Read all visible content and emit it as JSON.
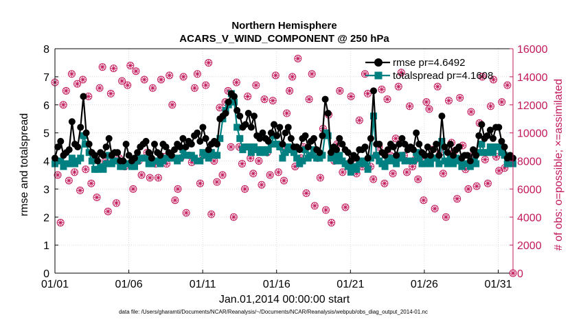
{
  "chart_data": {
    "type": "line",
    "title": [
      "Northern Hemisphere",
      "ACARS_V_WIND_COMPONENT @ 250 hPa"
    ],
    "xlabel": "Jan.01,2014 00:00:00 start",
    "ylabel": "rmse and totalspread",
    "ylabel_right": "# of obs: o=possible; ×=assimilated",
    "footnote": "data file: /Users/gharamti/Documents/NCAR/Reanalysis/~/Documents/NCAR/Reanalysis/webpub/obs_diag_output_2014-01.nc",
    "xlim": [
      1,
      32
    ],
    "ylim": [
      0,
      8
    ],
    "ylim_right": [
      0,
      16000
    ],
    "xticks": [
      {
        "value": 1,
        "label": "01/01"
      },
      {
        "value": 6,
        "label": "01/06"
      },
      {
        "value": 11,
        "label": "01/11"
      },
      {
        "value": 16,
        "label": "01/16"
      },
      {
        "value": 21,
        "label": "01/21"
      },
      {
        "value": 26,
        "label": "01/26"
      },
      {
        "value": 31,
        "label": "01/31"
      }
    ],
    "yticks": [
      "0",
      "1",
      "2",
      "3",
      "4",
      "5",
      "6",
      "7",
      "8"
    ],
    "yticks_right": [
      "0",
      "2000",
      "4000",
      "6000",
      "8000",
      "10000",
      "12000",
      "14000",
      "16000"
    ],
    "legend": {
      "placement": "top-right"
    },
    "series": [
      {
        "name": "rmse pr=4.6492",
        "axis": "left",
        "color": "#000000",
        "values": [
          4.1,
          4.5,
          4.7,
          4.2,
          4.3,
          4.4,
          5.4,
          4.6,
          4.5,
          5.2,
          6.3,
          5.0,
          4.6,
          4.3,
          4.2,
          4.0,
          4.3,
          4.2,
          4.5,
          4.8,
          4.2,
          4.3,
          4.3,
          4.0,
          4.0,
          4.6,
          4.2,
          4.0,
          4.1,
          4.3,
          4.5,
          4.6,
          4.7,
          4.3,
          4.1,
          4.6,
          4.3,
          4.2,
          4.6,
          4.5,
          4.3,
          4.2,
          4.4,
          4.6,
          4.5,
          4.8,
          4.5,
          4.7,
          4.6,
          4.9,
          5.0,
          4.7,
          5.2,
          4.8,
          4.4,
          4.6,
          4.7,
          4.6,
          5.5,
          5.6,
          5.7,
          6.1,
          6.4,
          6.3,
          5.8,
          5.6,
          5.2,
          5.3,
          5.7,
          5.2,
          5.6,
          4.9,
          4.8,
          5.0,
          4.8,
          4.7,
          5.0,
          5.3,
          4.9,
          5.2,
          4.6,
          5.0,
          5.2,
          4.8,
          4.5,
          4.5,
          4.4,
          4.8,
          4.9,
          4.5,
          4.7,
          4.8,
          4.4,
          4.3,
          4.9,
          6.2,
          5.7,
          4.3,
          4.5,
          4.4,
          4.8,
          4.6,
          4.4,
          4.3,
          4.0,
          4.2,
          4.1,
          4.4,
          4.4,
          4.5,
          4.1,
          4.8,
          6.5,
          4.6,
          4.6,
          4.3,
          4.2,
          4.4,
          4.6,
          4.5,
          4.2,
          4.6,
          4.8,
          4.6,
          4.4,
          4.5,
          4.4,
          5.0,
          4.6,
          4.3,
          4.2,
          4.5,
          4.2,
          4.4,
          4.6,
          4.2,
          5.6,
          4.5,
          4.3,
          4.6,
          4.2,
          4.4,
          4.5,
          4.1,
          4.2,
          4.2,
          4.0,
          4.4,
          4.2,
          4.9,
          5.3,
          4.8,
          4.9,
          5.1,
          4.8,
          5.2,
          5.2,
          4.7,
          4.5,
          4.1,
          4.2,
          4.1
        ],
        "note": "values at 5 per day"
      },
      {
        "name": "totalspread pr=4.1608",
        "axis": "left",
        "color": "#008080",
        "values": [
          3.9,
          4.0,
          4.0,
          3.8,
          3.9,
          3.9,
          4.1,
          3.9,
          4.0,
          4.1,
          4.9,
          4.6,
          4.3,
          4.0,
          3.7,
          3.7,
          3.8,
          3.7,
          3.9,
          4.2,
          3.9,
          4.0,
          4.0,
          3.8,
          3.8,
          3.9,
          3.9,
          3.8,
          3.8,
          4.0,
          4.1,
          4.1,
          4.1,
          3.9,
          3.9,
          4.0,
          4.0,
          3.9,
          4.0,
          4.1,
          4.1,
          4.1,
          4.1,
          4.0,
          4.1,
          4.4,
          4.2,
          4.2,
          4.2,
          4.1,
          4.0,
          4.0,
          4.3,
          4.2,
          4.1,
          4.3,
          4.2,
          4.2,
          4.8,
          5.5,
          5.8,
          6.0,
          6.4,
          6.1,
          5.2,
          4.8,
          4.4,
          4.5,
          4.5,
          4.3,
          4.5,
          4.4,
          4.3,
          4.4,
          4.3,
          4.4,
          4.6,
          4.9,
          4.6,
          4.5,
          4.1,
          4.3,
          4.5,
          4.4,
          4.3,
          4.1,
          3.9,
          4.0,
          4.4,
          4.1,
          4.2,
          4.4,
          4.1,
          4.1,
          4.2,
          5.0,
          4.9,
          4.1,
          4.2,
          4.0,
          4.2,
          4.0,
          3.9,
          3.8,
          3.6,
          3.8,
          3.7,
          3.9,
          4.0,
          3.9,
          3.7,
          4.1,
          5.6,
          4.2,
          4.0,
          3.9,
          3.8,
          4.0,
          4.1,
          4.0,
          3.9,
          4.1,
          4.2,
          4.0,
          4.0,
          4.0,
          4.0,
          4.3,
          4.1,
          3.9,
          3.9,
          4.0,
          3.9,
          4.1,
          4.1,
          3.9,
          4.7,
          4.0,
          3.9,
          4.1,
          3.9,
          4.1,
          4.0,
          3.8,
          3.9,
          3.9,
          3.8,
          4.0,
          3.9,
          4.3,
          4.6,
          4.3,
          4.3,
          4.5,
          4.3,
          4.5,
          4.5,
          4.3,
          4.2,
          3.9,
          4.0,
          3.9
        ]
      },
      {
        "name": "possible",
        "axis": "right",
        "marker": "circle",
        "color": "#c2185b",
        "values": [
          13600,
          7000,
          3600,
          12000,
          13000,
          6600,
          14200,
          7200,
          13500,
          5900,
          13800,
          7400,
          12600,
          6400,
          8300,
          5400,
          13200,
          14700,
          8000,
          4400,
          12800,
          14600,
          5000,
          8200,
          13700,
          7600,
          13400,
          14800,
          6000,
          14400,
          8000,
          7000,
          13800,
          8600,
          6800,
          13200,
          7800,
          6800,
          13800,
          8300,
          7800,
          14100,
          12000,
          5200,
          6000,
          8200,
          14000,
          4300,
          8400,
          7900,
          13200,
          14200,
          6400,
          8400,
          13400,
          15000,
          4200,
          8000,
          6500,
          11800,
          7000,
          12200,
          13000,
          9000,
          4000,
          13600,
          9000,
          7800,
          6000,
          12600,
          8200,
          7100,
          13400,
          8000,
          6300,
          12400,
          8600,
          7000,
          12300,
          14100,
          7200,
          9000,
          6600,
          11400,
          13000,
          14000,
          7600,
          15300,
          8200,
          9000,
          5700,
          12400,
          14200,
          4800,
          8200,
          6800,
          10300,
          4500,
          11300,
          3600,
          8000,
          9200,
          13000,
          7200,
          4700,
          7800,
          12600,
          8200,
          7100,
          10900,
          7600,
          14200,
          12800,
          7600,
          6700,
          8400,
          9000,
          13100,
          6400,
          12400,
          8400,
          7100,
          9600,
          13300,
          14300,
          8400,
          7200,
          11900,
          7600,
          8100,
          6700,
          8300,
          5200,
          12200,
          11700,
          8800,
          4600,
          13300,
          8600,
          7100,
          4000,
          12300,
          9300,
          8700,
          5300,
          12500,
          9100,
          7400,
          6000,
          11500,
          8500,
          6200,
          10700,
          14000,
          8100,
          6400,
          11900,
          13800,
          8300,
          7300,
          12200,
          7500,
          13400,
          8000,
          0
        ]
      },
      {
        "name": "assimilated",
        "axis": "right",
        "marker": "asterisk",
        "color": "#c2185b",
        "values": [
          13600,
          7000,
          3600,
          12000,
          13000,
          6600,
          14200,
          7200,
          13500,
          5900,
          13800,
          7400,
          12600,
          6400,
          8300,
          5400,
          13200,
          14700,
          8000,
          4400,
          12800,
          14600,
          5000,
          8200,
          13700,
          7600,
          13400,
          14800,
          6000,
          14400,
          8000,
          7000,
          13800,
          8600,
          6800,
          13200,
          7800,
          6800,
          13800,
          8300,
          7800,
          14100,
          12000,
          5200,
          6000,
          8200,
          14000,
          4300,
          8400,
          7900,
          13200,
          14200,
          6400,
          8400,
          13400,
          15000,
          4200,
          8000,
          6500,
          11800,
          7000,
          12200,
          13000,
          9000,
          4000,
          13600,
          9000,
          7800,
          6000,
          12600,
          8200,
          7100,
          13400,
          8000,
          6300,
          12400,
          8600,
          7000,
          12300,
          14100,
          7200,
          9000,
          6600,
          11400,
          13000,
          14000,
          7600,
          15300,
          8200,
          9000,
          5700,
          12400,
          14200,
          4800,
          8200,
          6800,
          10300,
          4500,
          11300,
          3600,
          8000,
          9200,
          13000,
          7200,
          4700,
          7800,
          12600,
          8200,
          7100,
          10900,
          7600,
          14200,
          12800,
          7600,
          6700,
          8400,
          9000,
          13100,
          6400,
          12400,
          8400,
          7100,
          9600,
          13300,
          14300,
          8400,
          7200,
          11900,
          7600,
          8100,
          6700,
          8300,
          5200,
          12200,
          11700,
          8800,
          4600,
          13300,
          8600,
          7100,
          4000,
          12300,
          9300,
          8700,
          5300,
          12500,
          9100,
          7400,
          6000,
          11500,
          8500,
          6200,
          10700,
          14000,
          8100,
          6400,
          11900,
          13800,
          8300,
          7300,
          12200,
          7500,
          13400,
          8000,
          0
        ]
      }
    ]
  }
}
